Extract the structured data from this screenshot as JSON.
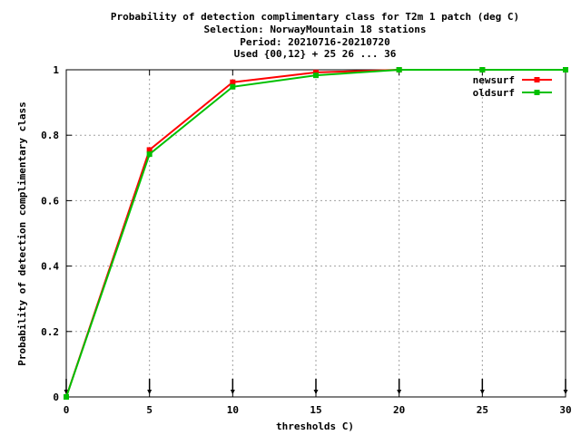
{
  "chart_data": {
    "type": "line",
    "title_lines": [
      "Probability of detection complimentary class  for T2m 1 patch (deg C)",
      "Selection: NorwayMountain     18 stations",
      "Period: 20210716-20210720",
      "Used {00,12} + 25 26 ... 36"
    ],
    "xlabel": "thresholds C)",
    "ylabel": "Probability of detection complimentary class",
    "xlim": [
      0,
      30
    ],
    "ylim": [
      0,
      1
    ],
    "x_ticks": [
      0,
      5,
      10,
      15,
      20,
      25,
      30
    ],
    "y_ticks": [
      0,
      0.2,
      0.4,
      0.6,
      0.8,
      1
    ],
    "x_tick_labels": [
      "0",
      "5",
      "10",
      "15",
      "20",
      "25",
      "30"
    ],
    "y_tick_labels": [
      "0",
      "0.2",
      "0.4",
      "0.6",
      "0.8",
      "1"
    ],
    "grid": true,
    "legend_position": "top-right",
    "x": [
      0,
      5,
      10,
      15,
      20,
      25,
      30
    ],
    "series": [
      {
        "name": "newsurf",
        "color": "#ff0000",
        "values": [
          0.0,
          0.755,
          0.962,
          0.992,
          1.0,
          1.0,
          1.0
        ]
      },
      {
        "name": "oldsurf",
        "color": "#00c000",
        "values": [
          0.0,
          0.742,
          0.948,
          0.983,
          1.0,
          1.0,
          1.0
        ]
      }
    ]
  }
}
